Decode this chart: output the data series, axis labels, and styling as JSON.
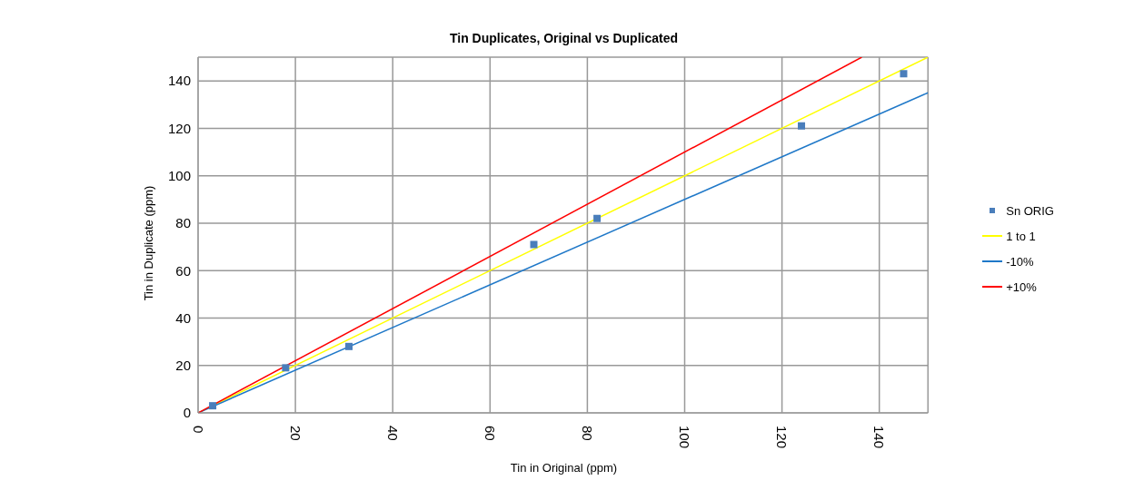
{
  "chart_data": {
    "type": "scatter",
    "title": "Tin Duplicates, Original vs Duplicated",
    "xlabel": "Tin in Original (ppm)",
    "ylabel": "Tin in Duplicate (ppm)",
    "x": [
      3,
      18,
      31,
      69,
      82,
      124,
      145
    ],
    "series": [
      {
        "name": "Sn ORIG",
        "color": "#4a7ebb",
        "values": [
          3,
          19,
          28,
          71,
          82,
          121,
          143
        ],
        "marker": "square"
      },
      {
        "name": "1 to 1",
        "type": "line",
        "color": "#ffff00",
        "x": [
          0,
          150
        ],
        "values": [
          0,
          150
        ],
        "marker": "none"
      },
      {
        "name": "-10%",
        "type": "line",
        "color": "#1f78c8",
        "x": [
          0,
          150
        ],
        "values": [
          0,
          135
        ],
        "marker": "none"
      },
      {
        "name": "+10%",
        "type": "line",
        "color": "#ff0000",
        "x": [
          0,
          136.4
        ],
        "values": [
          0,
          150
        ],
        "marker": "none"
      }
    ],
    "xlim": [
      0,
      150
    ],
    "xticks": [
      0,
      20,
      40,
      60,
      80,
      100,
      120,
      140
    ],
    "ylim": [
      0,
      150
    ],
    "yticks": [
      0,
      20,
      40,
      60,
      80,
      100,
      120,
      140
    ],
    "grid": true,
    "legend": "right"
  }
}
